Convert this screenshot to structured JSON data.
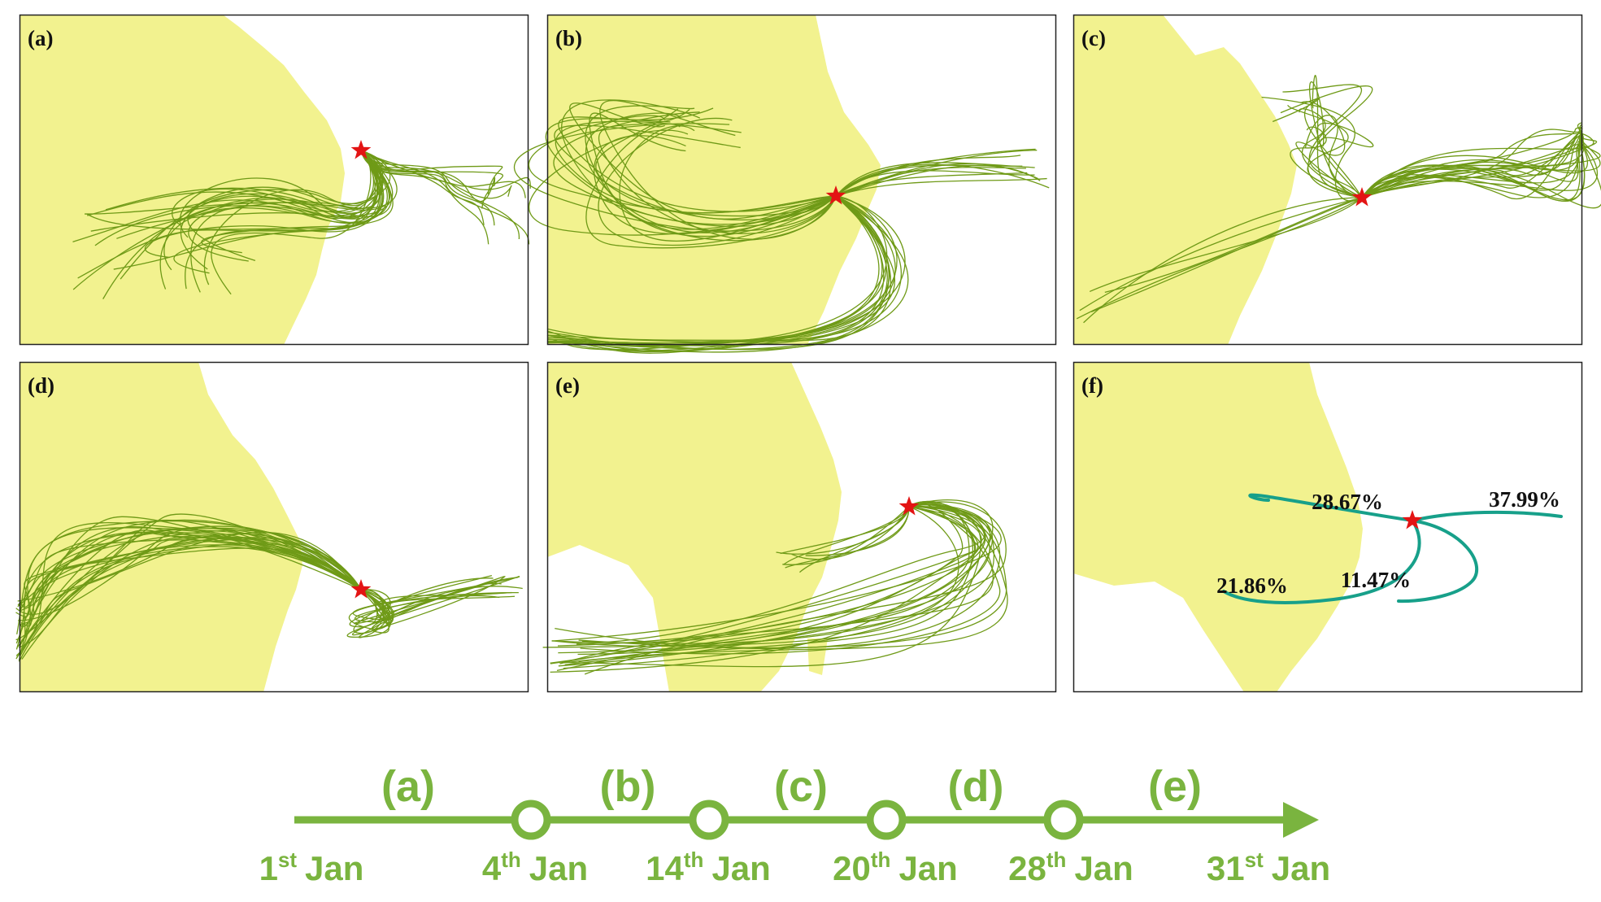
{
  "colors": {
    "land": "#f2f28f",
    "trajectory": "#6f9a17",
    "cluster": "#17a08a",
    "star": "#e31414",
    "timeline": "#7ab43f",
    "frame": "#222222"
  },
  "panels": [
    {
      "label": "(a)"
    },
    {
      "label": "(b)"
    },
    {
      "label": "(c)"
    },
    {
      "label": "(d)"
    },
    {
      "label": "(e)"
    },
    {
      "label": "(f)"
    }
  ],
  "clusters": [
    {
      "percent": "28.67%"
    },
    {
      "percent": "37.99%"
    },
    {
      "percent": "21.86%"
    },
    {
      "percent": "11.47%"
    }
  ],
  "timeline": {
    "periods": [
      "(a)",
      "(b)",
      "(c)",
      "(d)",
      "(e)"
    ],
    "dates": [
      {
        "num": "1",
        "sup": "st",
        "month": "Jan"
      },
      {
        "num": "4",
        "sup": "th",
        "month": "Jan"
      },
      {
        "num": "14",
        "sup": "th",
        "month": "Jan"
      },
      {
        "num": "20",
        "sup": "th",
        "month": "Jan"
      },
      {
        "num": "28",
        "sup": "th",
        "month": "Jan"
      },
      {
        "num": "31",
        "sup": "st",
        "month": "Jan"
      }
    ]
  }
}
